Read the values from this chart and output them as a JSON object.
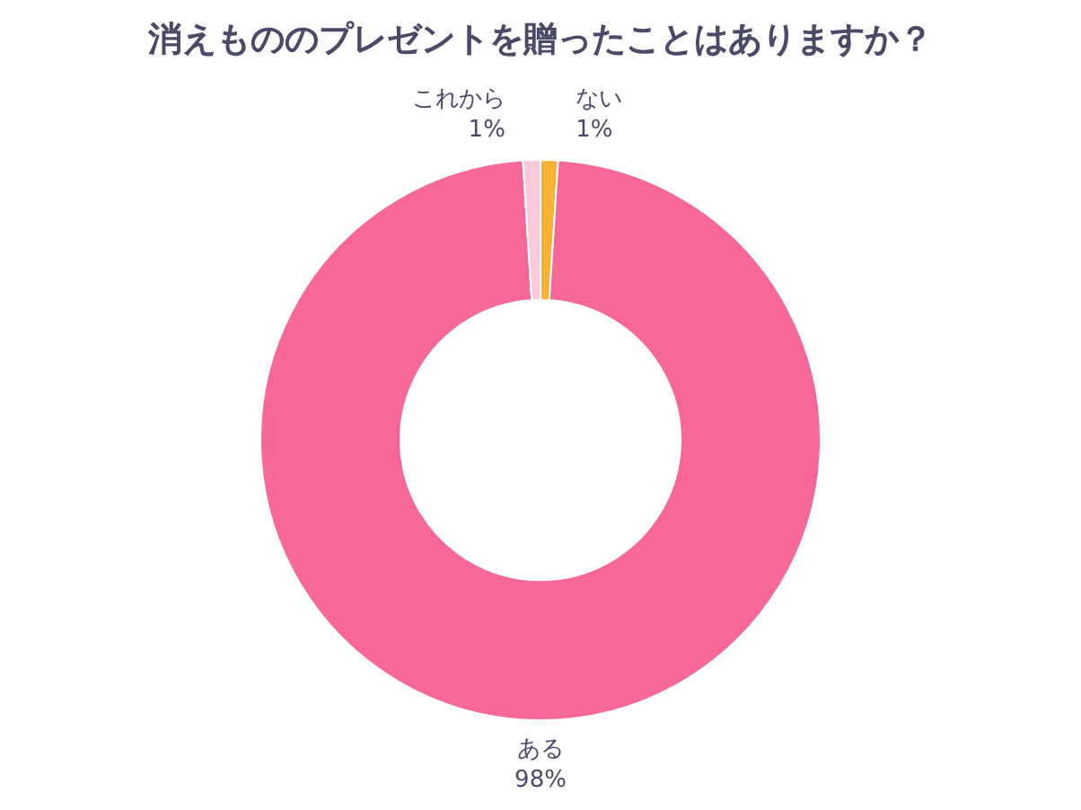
{
  "chart_data": {
    "type": "donut",
    "title": "消えもののプレゼントを贈ったことはありますか？",
    "categories": [
      "ない",
      "ある",
      "これから"
    ],
    "values": [
      1,
      98,
      1
    ],
    "colors": [
      "#f9b233",
      "#f76896",
      "#fbc8d8"
    ],
    "value_labels": [
      "1%",
      "98%",
      "1%"
    ]
  }
}
